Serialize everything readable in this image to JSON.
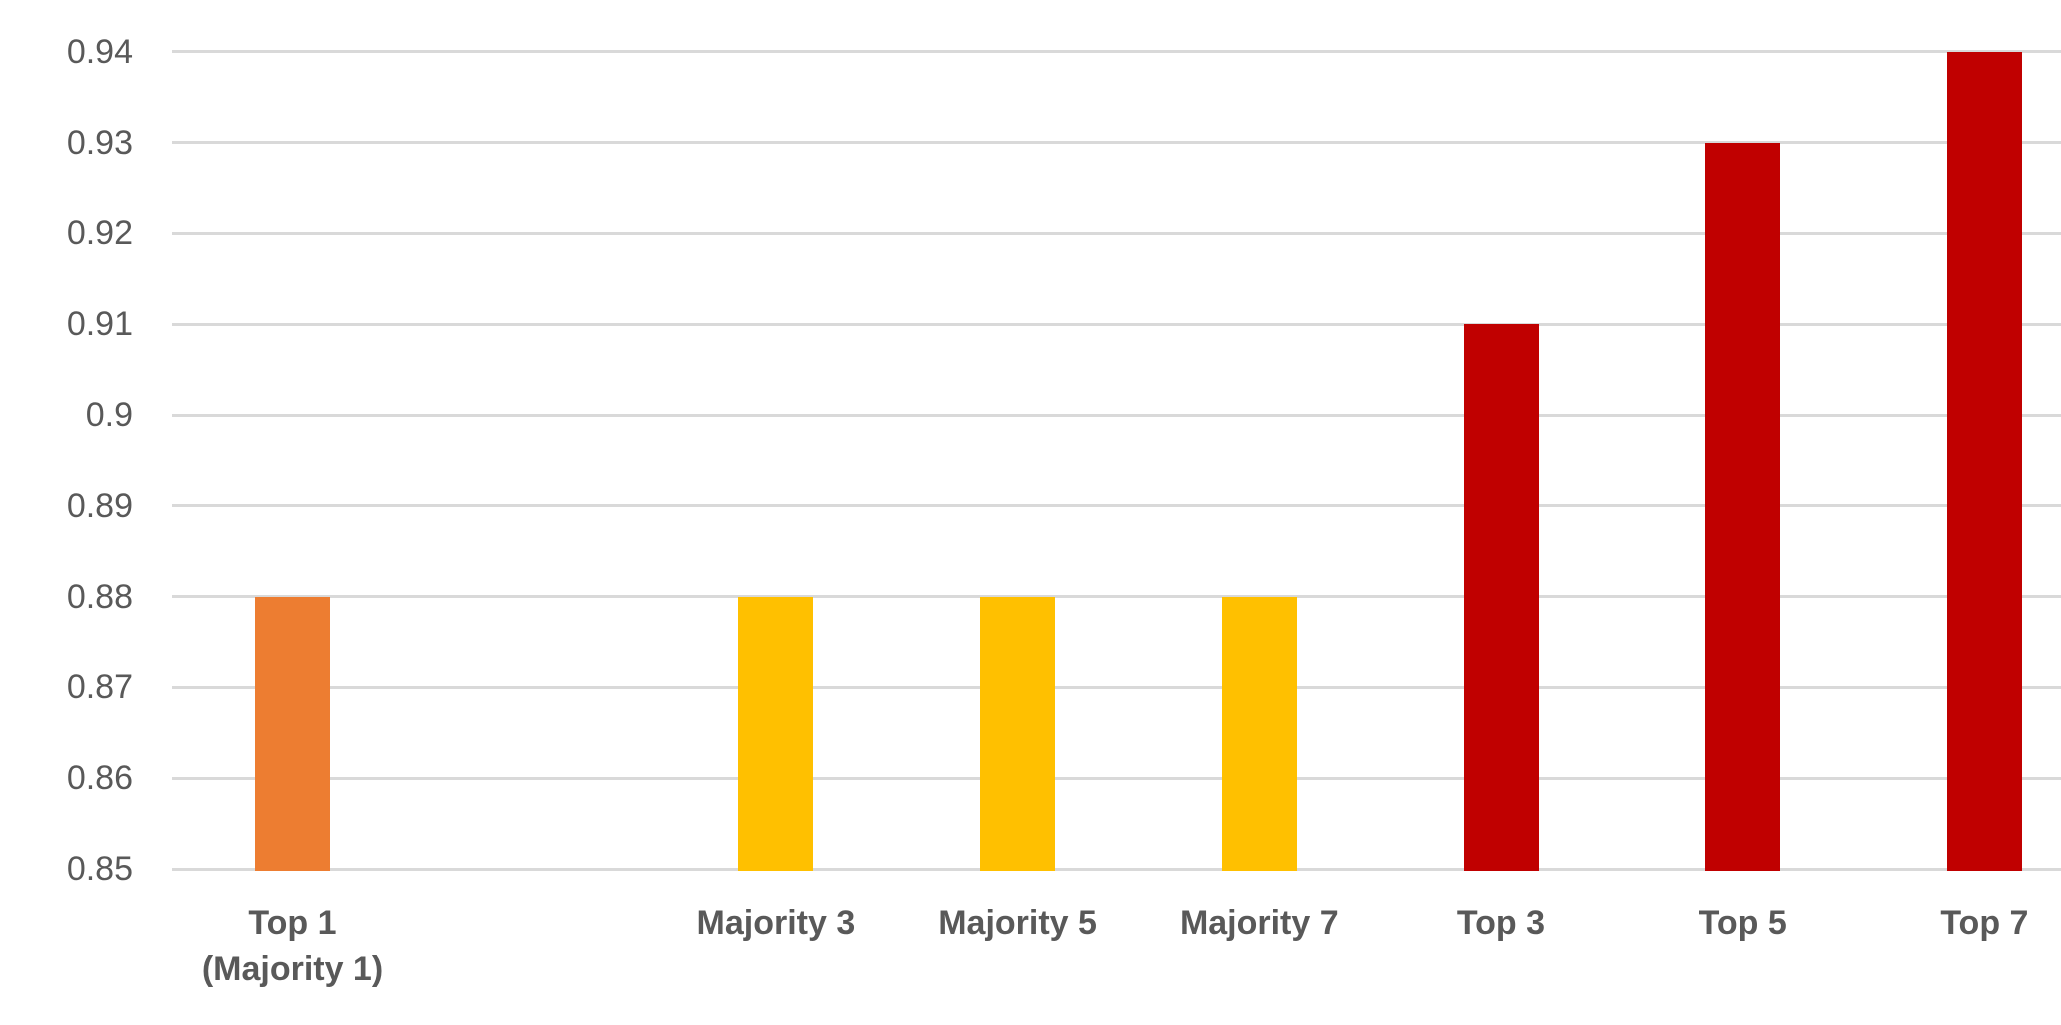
{
  "chart_data": {
    "type": "bar",
    "title": "",
    "xlabel": "",
    "ylabel": "",
    "legend": "none",
    "grid": true,
    "background_color": "#ffffff",
    "gridline_color": "#d9d9d9",
    "axis_label_color": "#595959",
    "ylim": [
      0.85,
      0.94
    ],
    "ytick_step": 0.01,
    "yticks": [
      {
        "label": "0.94",
        "value": 0.94
      },
      {
        "label": "0.93",
        "value": 0.93
      },
      {
        "label": "0.92",
        "value": 0.92
      },
      {
        "label": "0.91",
        "value": 0.91
      },
      {
        "label": "0.9",
        "value": 0.9
      },
      {
        "label": "0.89",
        "value": 0.89
      },
      {
        "label": "0.88",
        "value": 0.88
      },
      {
        "label": "0.87",
        "value": 0.87
      },
      {
        "label": "0.86",
        "value": 0.86
      },
      {
        "label": "0.85",
        "value": 0.85
      }
    ],
    "bars": [
      {
        "name": "top-1",
        "label_lines": [
          "Top 1",
          "(Majority 1)"
        ],
        "value": 0.88,
        "color": "#ED7D31"
      },
      {
        "name": "spacer",
        "label_lines": [],
        "value": null,
        "color": null
      },
      {
        "name": "majority-3",
        "label_lines": [
          "Majority 3"
        ],
        "value": 0.88,
        "color": "#FFC000"
      },
      {
        "name": "majority-5",
        "label_lines": [
          "Majority 5"
        ],
        "value": 0.88,
        "color": "#FFC000"
      },
      {
        "name": "majority-7",
        "label_lines": [
          "Majority 7"
        ],
        "value": 0.88,
        "color": "#FFC000"
      },
      {
        "name": "top-3",
        "label_lines": [
          "Top 3"
        ],
        "value": 0.91,
        "color": "#C00000"
      },
      {
        "name": "top-5",
        "label_lines": [
          "Top 5"
        ],
        "value": 0.93,
        "color": "#C00000"
      },
      {
        "name": "top-7",
        "label_lines": [
          "Top 7"
        ],
        "value": 0.94,
        "color": "#C00000"
      }
    ]
  }
}
